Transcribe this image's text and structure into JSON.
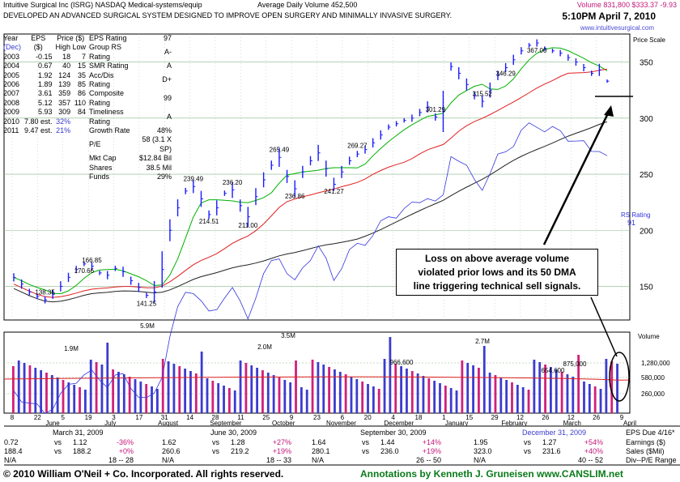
{
  "header": {
    "company": "Intuitive Surgical Inc",
    "ticker": "(ISRG)",
    "exchange": "NASDAQ",
    "industry": "Medical-systems/equip",
    "avg_volume": "Average Daily Volume 452,500",
    "volume_price": "Volume 831,800  $333.37  -9.93",
    "description": "DEVELOPED AN ADVANCED SURGICAL SYSTEM DESIGNED TO IMPROVE   OPEN SURGERY AND MINIMALLY INVASIVE SURGERY.",
    "datetime": "5:10PM April 7, 2010",
    "url": "www.intuitivesurgical.com"
  },
  "eps_table": {
    "headers": [
      "Year",
      "EPS",
      "Price ($)",
      "(Dec)",
      "($)",
      "High Low"
    ],
    "rows": [
      {
        "year": "2003",
        "eps": "-0.15",
        "high": "18",
        "low": "7"
      },
      {
        "year": "2004",
        "eps": "0.67",
        "high": "40",
        "low": "15"
      },
      {
        "year": "2005",
        "eps": "1.92",
        "high": "124",
        "low": "35"
      },
      {
        "year": "2006",
        "eps": "1.89",
        "high": "139",
        "low": "85"
      },
      {
        "year": "2007",
        "eps": "3.61",
        "high": "359",
        "low": "86"
      },
      {
        "year": "2008",
        "eps": "5.12",
        "high": "357",
        "low": "110"
      },
      {
        "year": "2009",
        "eps": "5.93",
        "high": "309",
        "low": "84"
      },
      {
        "year": "2010",
        "eps": "7.80 est.",
        "high": "32%",
        "low": ""
      },
      {
        "year": "2011",
        "eps": "9.47 est.",
        "high": "21%",
        "low": ""
      }
    ]
  },
  "ratings_table": [
    {
      "label": "EPS Rating",
      "value": "97"
    },
    {
      "label": "Group RS Rating",
      "value": "A-"
    },
    {
      "label": "SMR Rating",
      "value": "A"
    },
    {
      "label": "Acc/Dis Rating",
      "value": "D+"
    },
    {
      "label": "Composite Rating",
      "value": "99"
    },
    {
      "label": "Timeliness Rating",
      "value": "A"
    },
    {
      "label": "Growth Rate",
      "value": "48%"
    },
    {
      "label": "P/E",
      "value": "58 (3.1 X SP)"
    },
    {
      "label": "Mkt Cap",
      "value": "$12.84 Bil"
    },
    {
      "label": "Shares",
      "value": "38.5 Mil"
    },
    {
      "label": "Funds",
      "value": "29%"
    }
  ],
  "annotation": {
    "line1": "Loss on above average volume",
    "line2": "violated prior lows and its 50 DMA",
    "line3": "line triggering technical sell signals."
  },
  "quarters": [
    {
      "label": "March 31, 2009",
      "eps_a": "0.72",
      "eps_vs": "vs",
      "eps_b": "1.12",
      "eps_pct": "-36%",
      "sales_a": "188.4",
      "sales_vs": "vs",
      "sales_b": "188.2",
      "sales_pct": "+0%",
      "pe": "N/A",
      "pe_range": "18 -- 28"
    },
    {
      "label": "June 30, 2009",
      "eps_a": "1.62",
      "eps_vs": "vs",
      "eps_b": "1.28",
      "eps_pct": "+27%",
      "sales_a": "260.6",
      "sales_vs": "vs",
      "sales_b": "219.2",
      "sales_pct": "+19%",
      "pe": "N/A",
      "pe_range": "18 -- 33"
    },
    {
      "label": "September 30, 2009",
      "eps_a": "1.64",
      "eps_vs": "vs",
      "eps_b": "1.44",
      "eps_pct": "+14%",
      "sales_a": "280.1",
      "sales_vs": "vs",
      "sales_b": "236.0",
      "sales_pct": "+19%",
      "pe": "N/A",
      "pe_range": "26 -- 50"
    },
    {
      "label": "December 31, 2009",
      "eps_a": "1.95",
      "eps_vs": "vs",
      "eps_b": "1.27",
      "eps_pct": "+54%",
      "sales_a": "323.0",
      "sales_vs": "vs",
      "sales_b": "231.6",
      "sales_pct": "+40%",
      "pe": "N/A",
      "pe_range": "40 -- 52"
    }
  ],
  "side_labels": {
    "eps_due": "EPS Due 4/16*",
    "earnings": "Earnings ($)",
    "sales": "Sales ($Mil)",
    "div": "Div--P/E Range"
  },
  "footer": {
    "copyright": "© 2010 William O'Neil + Co. Incorporated. All rights reserved.",
    "annotations": "Annotations by Kenneth J. Gruneisen  www.CANSLIM.net"
  },
  "colors": {
    "price_bar": "#1a1aff",
    "ma50": "#00b000",
    "ma200": "#e02020",
    "longma": "#222222",
    "rs": "#3333dd",
    "vol_up": "#3b3bd0",
    "vol_down": "#d0207a",
    "grid": "#8ab88a"
  },
  "chart_data": {
    "type": "bar",
    "price_axis": {
      "label": "Price Scale",
      "ticks": [
        150,
        200,
        250,
        300,
        350
      ],
      "range": [
        120,
        375
      ]
    },
    "volume_axis": {
      "label": "Volume",
      "ticks": [
        "1,280,000",
        "580,000",
        "260,000"
      ]
    },
    "date_ticks": [
      "8",
      "22",
      "5",
      "19",
      "3",
      "17",
      "31",
      "14",
      "28",
      "11",
      "25",
      "9",
      "23",
      "6",
      "20",
      "4",
      "18",
      "1",
      "15",
      "29",
      "12",
      "26",
      "12",
      "26",
      "9"
    ],
    "month_labels": [
      "June",
      "July",
      "August",
      "September",
      "October",
      "November",
      "December",
      "January",
      "February",
      "March",
      "April"
    ],
    "price_labels": [
      {
        "label": "138.35",
        "value": 138.35
      },
      {
        "label": "170.66",
        "value": 170.66
      },
      {
        "label": "166.85",
        "value": 166.85
      },
      {
        "label": "141.25",
        "value": 141.25
      },
      {
        "label": "239.49",
        "value": 239.49
      },
      {
        "label": "214.51",
        "value": 214.51
      },
      {
        "label": "236.20",
        "value": 236.2
      },
      {
        "label": "211.00",
        "value": 211.0
      },
      {
        "label": "265.49",
        "value": 265.49
      },
      {
        "label": "236.86",
        "value": 236.86
      },
      {
        "label": "269.27",
        "value": 269.27
      },
      {
        "label": "241.27",
        "value": 241.27
      },
      {
        "label": "301.29",
        "value": 301.29
      },
      {
        "label": "346.29",
        "value": 346.29
      },
      {
        "label": "315.52",
        "value": 315.52
      },
      {
        "label": "367.00",
        "value": 367.0
      }
    ],
    "volume_labels": [
      "5.9M",
      "1.9M",
      "2.0M",
      "3.5M",
      "966,600",
      "2.7M",
      "654,600",
      "875,000"
    ],
    "rs_rating": {
      "label": "RS Rating",
      "value": "91"
    },
    "series": [
      {
        "name": "Price",
        "values": [
          158,
          152,
          145,
          141,
          138,
          143,
          150,
          158,
          165,
          170,
          168,
          162,
          160,
          166,
          163,
          155,
          149,
          142,
          145,
          165,
          200,
          220,
          235,
          239,
          228,
          214,
          220,
          233,
          236,
          222,
          212,
          230,
          245,
          258,
          265,
          248,
          237,
          252,
          262,
          269,
          255,
          241,
          252,
          262,
          268,
          272,
          278,
          285,
          292,
          295,
          298,
          300,
          305,
          310,
          301,
          306,
          346,
          340,
          330,
          320,
          315,
          325,
          338,
          345,
          352,
          360,
          365,
          367,
          362,
          360,
          358,
          354,
          350,
          345,
          340,
          343,
          333
        ]
      }
    ]
  }
}
